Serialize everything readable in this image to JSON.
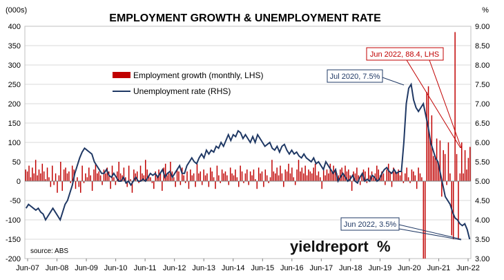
{
  "chart_data": {
    "type": "bar+line",
    "title": "EMPLOYMENT GROWTH & UNEMPLOYMENT RATE",
    "left_axis_unit": "(000s)",
    "right_axis_unit": "%",
    "source": "source: ABS",
    "logo_text": "yieldreport",
    "logo_symbol": "%",
    "left_ylim": [
      -200,
      400
    ],
    "right_ylim": [
      3.0,
      9.0
    ],
    "left_ticks": [
      "-200",
      "-150",
      "-100",
      "-50",
      "0",
      "50",
      "100",
      "150",
      "200",
      "250",
      "300",
      "350",
      "400"
    ],
    "right_ticks": [
      "3.00",
      "3.50",
      "4.00",
      "4.50",
      "5.00",
      "5.50",
      "6.00",
      "6.50",
      "7.00",
      "7.50",
      "8.00",
      "8.50",
      "9.00"
    ],
    "x_ticks": [
      "Jun-07",
      "Jun-08",
      "Jun-09",
      "Jun-10",
      "Jun-11",
      "Jun-12",
      "Jun-13",
      "Jun-14",
      "Jun-15",
      "Jun-16",
      "Jun-17",
      "Jun-18",
      "Jun-19",
      "Jun-20",
      "Jun-21",
      "Jun-22"
    ],
    "legend": [
      {
        "label": "Employment growth (monthly, LHS)",
        "color": "#c00000",
        "kind": "bar"
      },
      {
        "label": "Unemployment rate (RHS)",
        "color": "#1f3864",
        "kind": "line"
      }
    ],
    "colors": {
      "bar": "#c00000",
      "line": "#1f3864",
      "grid": "#d9d9d9",
      "annotation_blue_border": "#1f3864",
      "annotation_red_border": "#c00000",
      "annotation_red_text": "#c00000",
      "logo_symbol": "#c00000"
    },
    "annotations": [
      {
        "text": "Jun 2022, 88.4, LHS",
        "color": "red"
      },
      {
        "text": "Jul 2020, 7.5%",
        "color": "blue"
      },
      {
        "text": "Jun 2022, 3.5%",
        "color": "blue"
      }
    ],
    "series": [
      {
        "name": "Employment growth (monthly, LHS)",
        "kind": "bar",
        "axis": "left",
        "values": [
          30,
          25,
          40,
          10,
          35,
          20,
          55,
          15,
          30,
          20,
          45,
          25,
          5,
          35,
          10,
          -15,
          40,
          -10,
          20,
          -30,
          15,
          50,
          -25,
          30,
          35,
          20,
          25,
          -5,
          40,
          30,
          -20,
          10,
          -15,
          -30,
          40,
          -5,
          20,
          10,
          35,
          15,
          -25,
          30,
          45,
          20,
          25,
          15,
          -10,
          30,
          20,
          35,
          25,
          -20,
          40,
          10,
          -10,
          25,
          50,
          20,
          15,
          35,
          10,
          -15,
          40,
          5,
          -30,
          30,
          20,
          25,
          -5,
          40,
          20,
          15,
          55,
          30,
          15,
          10,
          -5,
          -20,
          25,
          15,
          30,
          20,
          -25,
          35,
          45,
          15,
          20,
          50,
          25,
          10,
          -15,
          30,
          25,
          -10,
          35,
          15,
          -5,
          25,
          -20,
          30,
          15,
          20,
          -15,
          45,
          20,
          25,
          -10,
          30,
          15,
          20,
          -15,
          35,
          25,
          10,
          -20,
          40,
          15,
          -5,
          30,
          20,
          25,
          15,
          -10,
          35,
          20,
          15,
          30,
          10,
          -15,
          40,
          25,
          -5,
          20,
          30,
          -10,
          25,
          15,
          30,
          5,
          -20,
          35,
          20,
          25,
          -15,
          30,
          15,
          -5,
          10,
          55,
          25,
          20,
          35,
          15,
          40,
          20,
          -15,
          30,
          25,
          45,
          20,
          35,
          10,
          -10,
          30,
          55,
          25,
          35,
          20,
          40,
          15,
          30,
          25,
          20,
          35,
          45,
          15,
          25,
          10,
          -20,
          35,
          15,
          30,
          20,
          45,
          25,
          40,
          30,
          20,
          15,
          30,
          35,
          20,
          40,
          25,
          30,
          15,
          -25,
          25,
          20,
          35,
          15,
          -10,
          20,
          30,
          25,
          -5,
          35,
          15,
          25,
          10,
          20,
          40,
          30,
          15,
          25,
          20,
          -10,
          30,
          45,
          25,
          -15,
          35,
          25,
          20,
          30,
          15,
          25,
          -5,
          20,
          35,
          10,
          -5,
          30,
          25,
          15,
          -20,
          35,
          20,
          10,
          -200,
          -200,
          230,
          245,
          110,
          170,
          65,
          60,
          110,
          45,
          105,
          -40,
          80,
          70,
          -10,
          100,
          20,
          -140,
          -150,
          385,
          70,
          -150,
          20,
          100,
          20,
          80,
          30,
          60,
          88.4
        ]
      },
      {
        "name": "Unemployment rate (RHS)",
        "kind": "line",
        "axis": "right",
        "values": [
          4.3,
          4.4,
          4.35,
          4.3,
          4.25,
          4.3,
          4.2,
          4.15,
          4.0,
          4.1,
          4.2,
          4.3,
          4.2,
          4.1,
          4.0,
          4.2,
          4.4,
          4.5,
          4.7,
          4.9,
          5.2,
          5.4,
          5.6,
          5.75,
          5.85,
          5.8,
          5.75,
          5.7,
          5.5,
          5.4,
          5.3,
          5.2,
          5.2,
          5.3,
          5.15,
          5.1,
          5.2,
          5.1,
          5.0,
          5.0,
          5.1,
          4.95,
          5.0,
          4.9,
          5.0,
          5.1,
          5.0,
          5.0,
          5.05,
          5.0,
          5.1,
          5.2,
          5.15,
          5.2,
          5.1,
          5.2,
          5.3,
          5.1,
          5.2,
          5.25,
          5.1,
          5.2,
          5.3,
          5.4,
          5.2,
          5.2,
          5.4,
          5.5,
          5.6,
          5.5,
          5.45,
          5.6,
          5.7,
          5.6,
          5.8,
          5.7,
          5.8,
          5.75,
          5.9,
          5.85,
          6.0,
          5.9,
          6.05,
          6.2,
          6.05,
          6.2,
          6.15,
          6.3,
          6.25,
          6.1,
          6.2,
          6.1,
          6.0,
          6.15,
          6.0,
          6.2,
          6.1,
          6.0,
          5.9,
          5.95,
          6.0,
          5.85,
          5.8,
          5.9,
          5.75,
          5.9,
          5.95,
          5.8,
          5.7,
          5.8,
          5.7,
          5.75,
          5.65,
          5.6,
          5.7,
          5.6,
          5.55,
          5.5,
          5.6,
          5.45,
          5.5,
          5.4,
          5.3,
          5.5,
          5.4,
          5.3,
          5.2,
          5.3,
          5.0,
          5.1,
          5.2,
          5.1,
          5.0,
          5.05,
          5.15,
          5.0,
          4.95,
          5.1,
          5.2,
          5.0,
          5.05,
          5.0,
          5.15,
          5.1,
          5.0,
          5.05,
          5.2,
          5.3,
          5.35,
          5.25,
          5.2,
          5.3,
          5.2,
          5.25,
          5.25,
          6.0,
          7.0,
          7.4,
          7.5,
          7.1,
          6.9,
          6.8,
          6.9,
          7.0,
          6.7,
          6.4,
          6.0,
          5.8,
          5.6,
          5.5,
          5.2,
          4.9,
          4.6,
          4.5,
          4.4,
          4.2,
          4.05,
          4.0,
          3.9,
          3.85,
          3.9,
          3.75,
          3.5
        ]
      }
    ]
  }
}
